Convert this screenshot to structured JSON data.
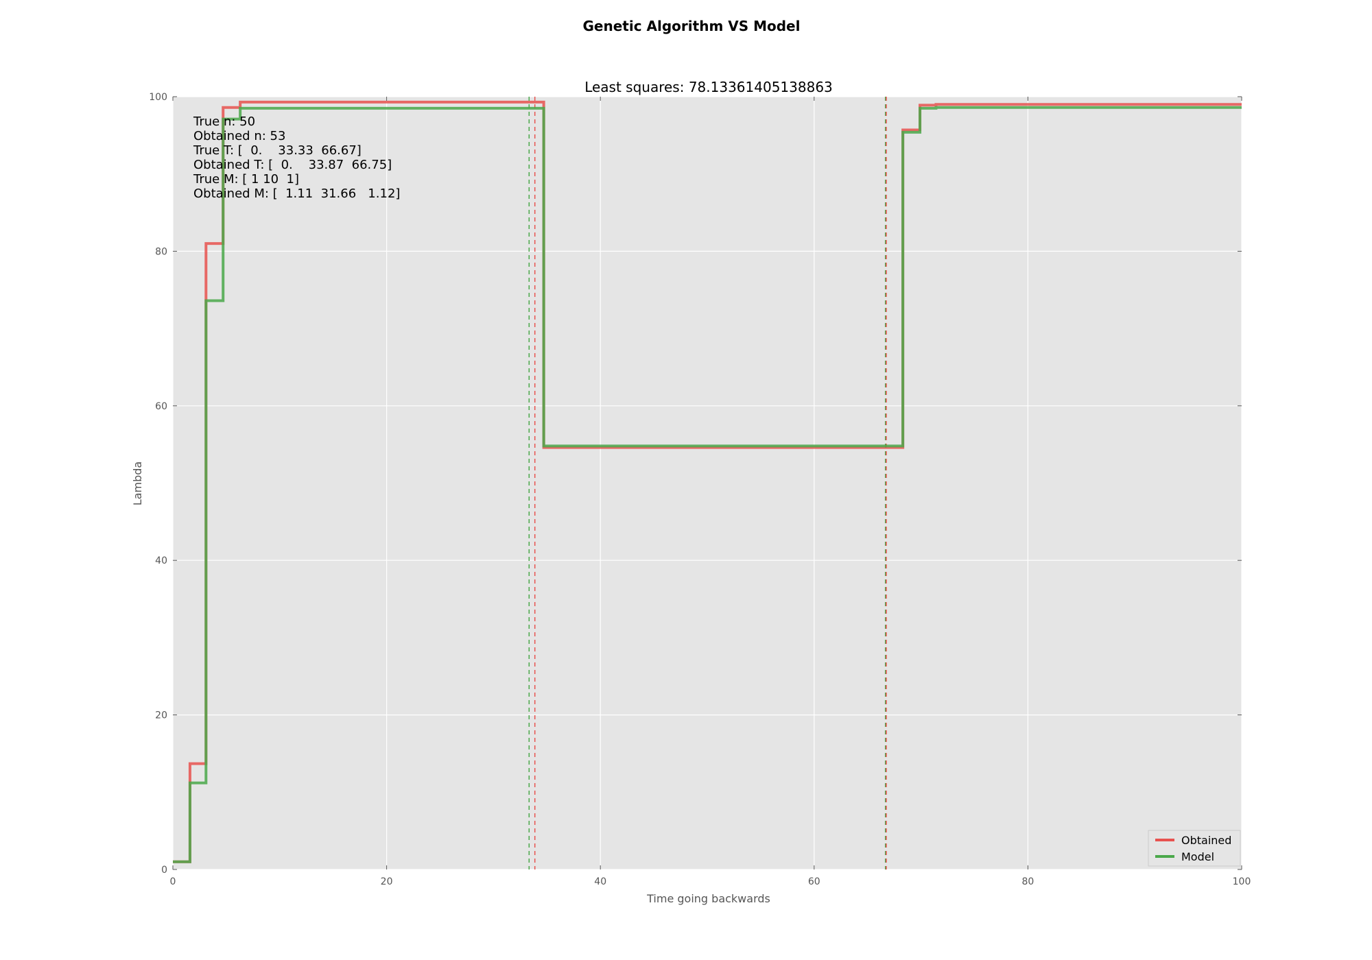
{
  "figure": {
    "suptitle": "Genetic Algorithm VS Model"
  },
  "colors": {
    "obtained": "#e8524f",
    "model": "#4aa84a",
    "overlap": "#6b5d2a",
    "axes_bg": "#e5e5e5",
    "grid": "#ffffff",
    "text": "#555555"
  },
  "chart_data": {
    "type": "line",
    "step": true,
    "title": "Least squares: 78.13361405138863",
    "xlabel": "Time going backwards",
    "ylabel": "Lambda",
    "xlim": [
      0,
      100
    ],
    "ylim": [
      0,
      100
    ],
    "x_ticks": [
      0,
      20,
      40,
      60,
      80,
      100
    ],
    "y_ticks": [
      0,
      20,
      40,
      60,
      80,
      100
    ],
    "grid": true,
    "legend_position": "lower-right",
    "series": [
      {
        "name": "Obtained",
        "color": "#e8524f",
        "x": [
          0,
          1.6,
          3.1,
          4.7,
          6.3,
          34.7,
          68.3,
          69.9,
          71.4,
          100
        ],
        "y": [
          1,
          13.7,
          81,
          98.6,
          99.3,
          54.6,
          95.7,
          98.9,
          99,
          99
        ]
      },
      {
        "name": "Model",
        "color": "#4aa84a",
        "x": [
          0,
          1.6,
          3.1,
          4.7,
          6.3,
          34.7,
          68.3,
          69.9,
          71.4,
          100
        ],
        "y": [
          1,
          11.2,
          73.6,
          97.1,
          98.5,
          54.8,
          95.4,
          98.5,
          98.6,
          98.6
        ]
      }
    ],
    "vlines": [
      {
        "x": 33.33,
        "color": "#4aa84a",
        "style": "dashed"
      },
      {
        "x": 33.87,
        "color": "#e8524f",
        "style": "dashed"
      },
      {
        "x": 66.67,
        "color": "#4aa84a",
        "style": "dashed"
      },
      {
        "x": 66.75,
        "color": "#e8524f",
        "style": "dashed"
      }
    ],
    "annotation": [
      "True n: 50",
      "Obtained n: 53",
      "True T: [  0.    33.33  66.67]",
      "Obtained T: [  0.    33.87  66.75]",
      "True M: [ 1 10  1]",
      "Obtained M: [  1.11  31.66   1.12]"
    ]
  }
}
